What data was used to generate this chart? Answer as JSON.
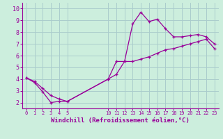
{
  "xlabel": "Windchill (Refroidissement éolien,°C)",
  "bg_color": "#cceedd",
  "line_color": "#990099",
  "grid_color": "#aacccc",
  "ylim": [
    1.5,
    10.5
  ],
  "xlim": [
    -0.5,
    23.5
  ],
  "yticks": [
    2,
    3,
    4,
    5,
    6,
    7,
    8,
    9,
    10
  ],
  "xticks": [
    0,
    1,
    2,
    3,
    4,
    5,
    10,
    11,
    12,
    13,
    14,
    15,
    16,
    17,
    18,
    19,
    20,
    21,
    22,
    23
  ],
  "xtick_labels": [
    "0",
    "1",
    "2",
    "3",
    "4",
    "5",
    "10",
    "11",
    "12",
    "13",
    "14",
    "15",
    "16",
    "17",
    "18",
    "19",
    "20",
    "21",
    "22",
    "23"
  ],
  "line1_x": [
    0,
    1,
    2,
    3,
    4,
    5,
    10,
    11,
    12,
    13,
    14,
    15,
    16,
    17,
    18,
    19,
    20,
    21,
    22,
    23
  ],
  "line1_y": [
    4.1,
    3.7,
    2.9,
    2.0,
    2.1,
    2.1,
    4.0,
    5.5,
    5.5,
    8.7,
    9.7,
    8.9,
    9.1,
    8.3,
    7.6,
    7.6,
    7.7,
    7.8,
    7.6,
    7.0
  ],
  "line2_x": [
    0,
    1,
    2,
    3,
    4,
    5,
    10,
    11,
    12,
    13,
    14,
    15,
    16,
    17,
    18,
    19,
    20,
    21,
    22,
    23
  ],
  "line2_y": [
    4.1,
    3.8,
    3.2,
    2.6,
    2.3,
    2.1,
    4.0,
    4.4,
    5.5,
    5.5,
    5.7,
    5.9,
    6.2,
    6.5,
    6.6,
    6.8,
    7.0,
    7.2,
    7.4,
    6.6
  ]
}
